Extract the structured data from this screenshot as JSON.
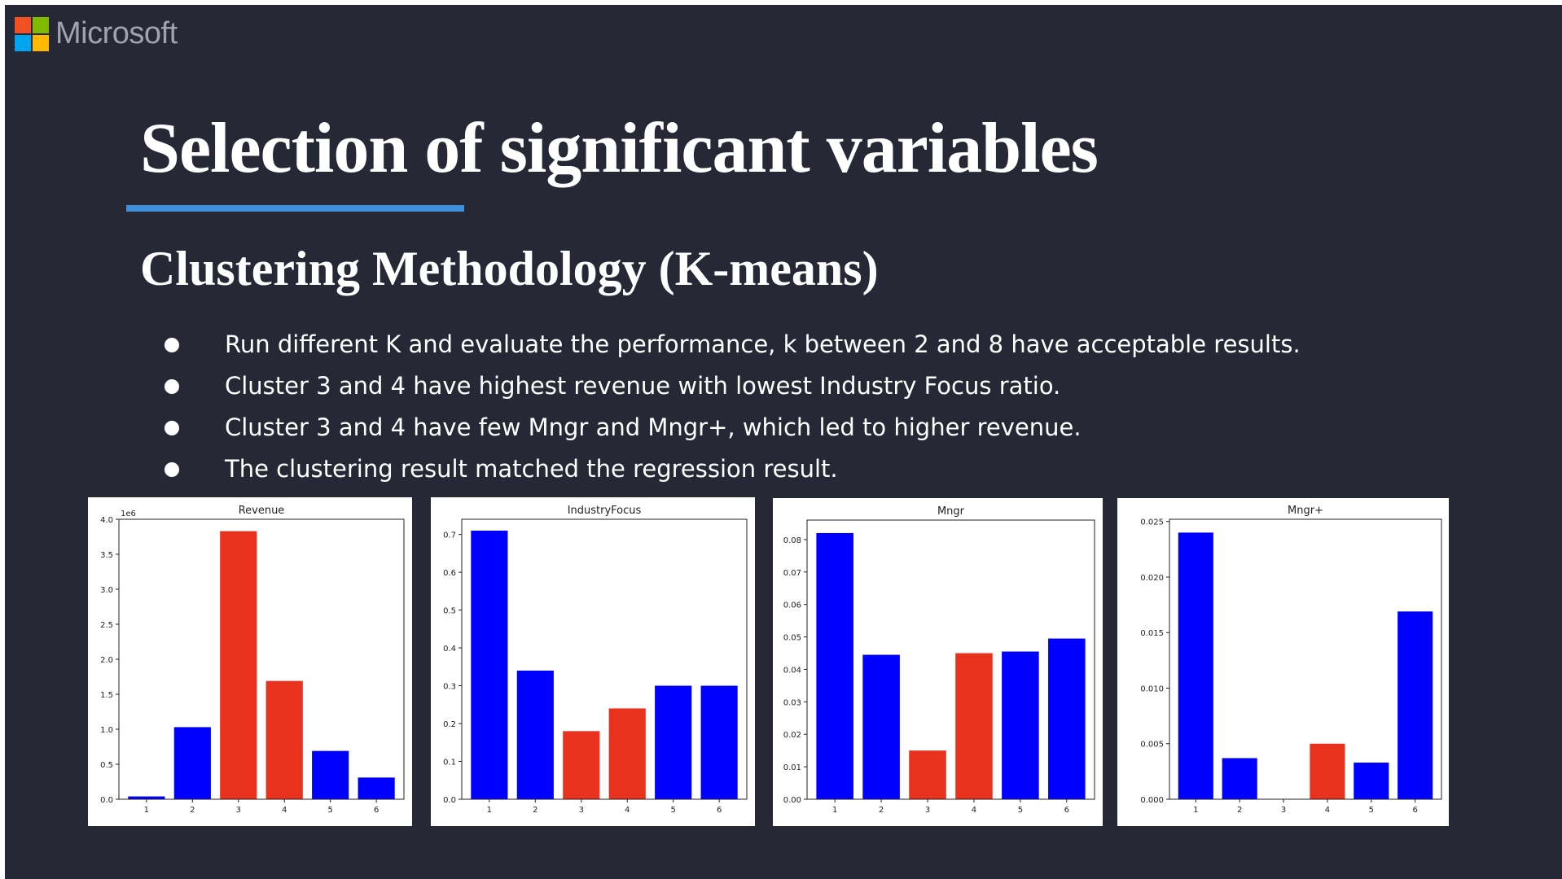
{
  "logo": {
    "text": "Microsoft",
    "colors": [
      "#f25022",
      "#7fba00",
      "#00a4ef",
      "#ffb900"
    ]
  },
  "title": "Selection of significant variables",
  "subtitle": "Clustering Methodology (K-means)",
  "bullets": [
    "Run different K and evaluate the performance, k between 2 and 8 have acceptable results.",
    "Cluster 3 and 4 have highest revenue with lowest Industry Focus ratio.",
    "Cluster 3 and 4 have few Mngr and Mngr+, which led to higher revenue.",
    "The clustering result matched the regression result."
  ],
  "colors": {
    "blue_bar": "#0000ff",
    "red_bar": "#e8321e",
    "accent": "#3d8fdc",
    "background": "#262835"
  },
  "chart_data": [
    {
      "type": "bar",
      "title": "Revenue",
      "categories": [
        "1",
        "2",
        "3",
        "4",
        "5",
        "6"
      ],
      "values": [
        0.04,
        1.03,
        3.83,
        1.69,
        0.69,
        0.31
      ],
      "bar_colors": [
        "blue",
        "blue",
        "red",
        "red",
        "blue",
        "blue"
      ],
      "ylim": [
        0,
        4.0
      ],
      "yticks": [
        "0.0",
        "0.5",
        "1.0",
        "1.5",
        "2.0",
        "2.5",
        "3.0",
        "3.5",
        "4.0"
      ],
      "offset_text": "1e6",
      "xlabel": "",
      "ylabel": ""
    },
    {
      "type": "bar",
      "title": "IndustryFocus",
      "categories": [
        "1",
        "2",
        "3",
        "4",
        "5",
        "6"
      ],
      "values": [
        0.71,
        0.34,
        0.18,
        0.24,
        0.3,
        0.3
      ],
      "bar_colors": [
        "blue",
        "blue",
        "red",
        "red",
        "blue",
        "blue"
      ],
      "ylim": [
        0,
        0.74
      ],
      "yticks": [
        "0.0",
        "0.1",
        "0.2",
        "0.3",
        "0.4",
        "0.5",
        "0.6",
        "0.7"
      ],
      "xlabel": "",
      "ylabel": ""
    },
    {
      "type": "bar",
      "title": "Mngr",
      "categories": [
        "1",
        "2",
        "3",
        "4",
        "5",
        "6"
      ],
      "values": [
        0.082,
        0.0445,
        0.015,
        0.045,
        0.0455,
        0.0495
      ],
      "bar_colors": [
        "blue",
        "blue",
        "red",
        "red",
        "blue",
        "blue"
      ],
      "ylim": [
        0,
        0.086
      ],
      "yticks": [
        "0.00",
        "0.01",
        "0.02",
        "0.03",
        "0.04",
        "0.05",
        "0.06",
        "0.07",
        "0.08"
      ],
      "xlabel": "",
      "ylabel": ""
    },
    {
      "type": "bar",
      "title": "Mngr+",
      "categories": [
        "1",
        "2",
        "3",
        "4",
        "5",
        "6"
      ],
      "values": [
        0.024,
        0.0037,
        0.0,
        0.005,
        0.0033,
        0.0169
      ],
      "bar_colors": [
        "blue",
        "blue",
        "red",
        "red",
        "blue",
        "blue"
      ],
      "ylim": [
        0,
        0.0252
      ],
      "yticks": [
        "0.000",
        "0.005",
        "0.010",
        "0.015",
        "0.020",
        "0.025"
      ],
      "xlabel": "",
      "ylabel": ""
    }
  ]
}
